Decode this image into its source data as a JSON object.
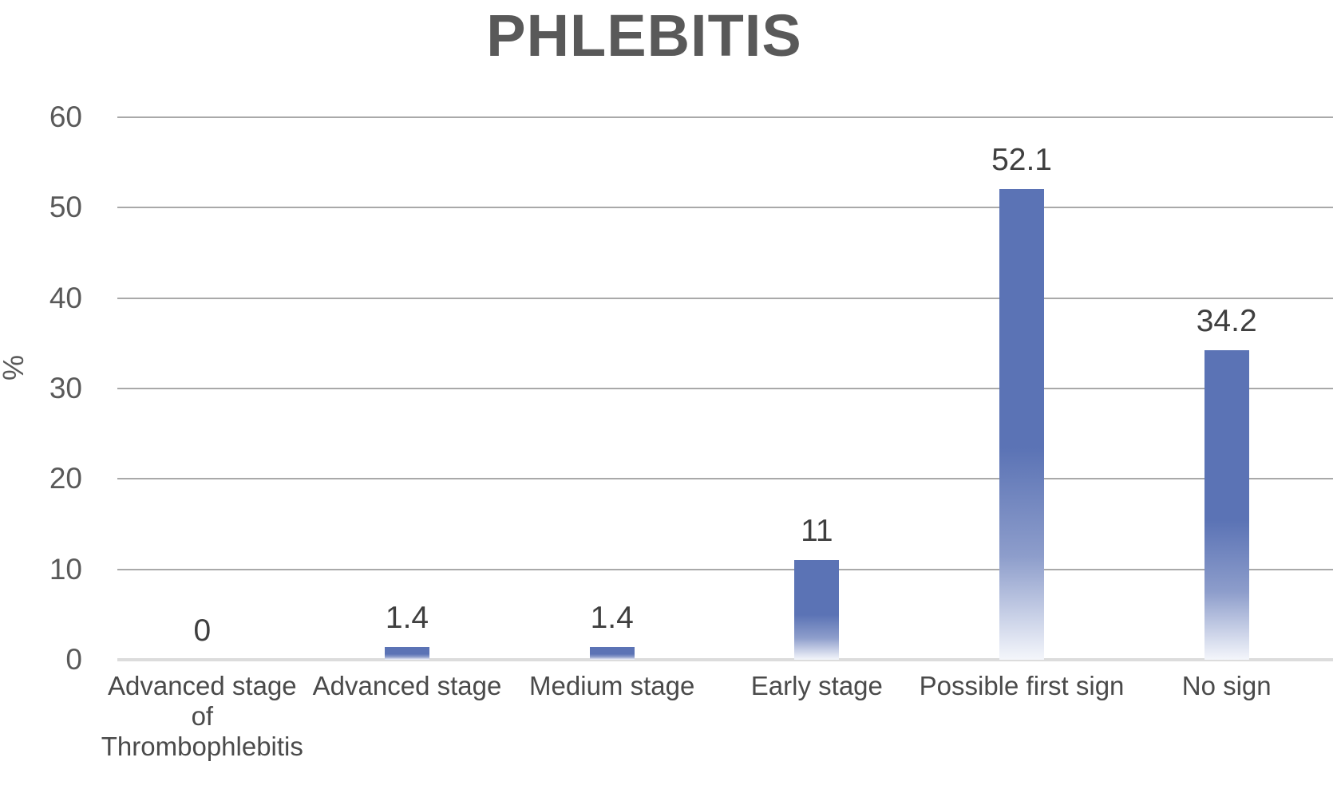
{
  "title": "PHLEBITIS",
  "colors": {
    "bar_top": "#5b73b5",
    "bar_mid_fade": "#8d9dcb",
    "bar_bottom_fade": "#f4f6fb",
    "gridline": "#a9a9a9",
    "baseline": "#dcdcdc",
    "title_text": "#595959",
    "tick_text": "#595959",
    "value_text": "#3f3f3f",
    "category_text": "#4a4a4a"
  },
  "chart_data": {
    "type": "bar",
    "title": "PHLEBITIS",
    "xlabel": "",
    "ylabel": "%",
    "ylim": [
      0,
      60
    ],
    "yticks": [
      0,
      10,
      20,
      30,
      40,
      50,
      60
    ],
    "grid": true,
    "legend": false,
    "categories": [
      "Advanced stage of Thrombophlebitis",
      "Advanced stage",
      "Medium stage",
      "Early stage",
      "Possible first sign",
      "No sign"
    ],
    "category_lines": [
      [
        "Advanced stage",
        "of",
        "Thrombophlebitis"
      ],
      [
        "Advanced stage"
      ],
      [
        "Medium stage"
      ],
      [
        "Early stage"
      ],
      [
        "Possible first sign"
      ],
      [
        "No sign"
      ]
    ],
    "values": [
      0,
      1.4,
      1.4,
      11,
      52.1,
      34.2
    ],
    "value_labels": [
      "0",
      "1.4",
      "1.4",
      "11",
      "52.1",
      "34.2"
    ]
  }
}
